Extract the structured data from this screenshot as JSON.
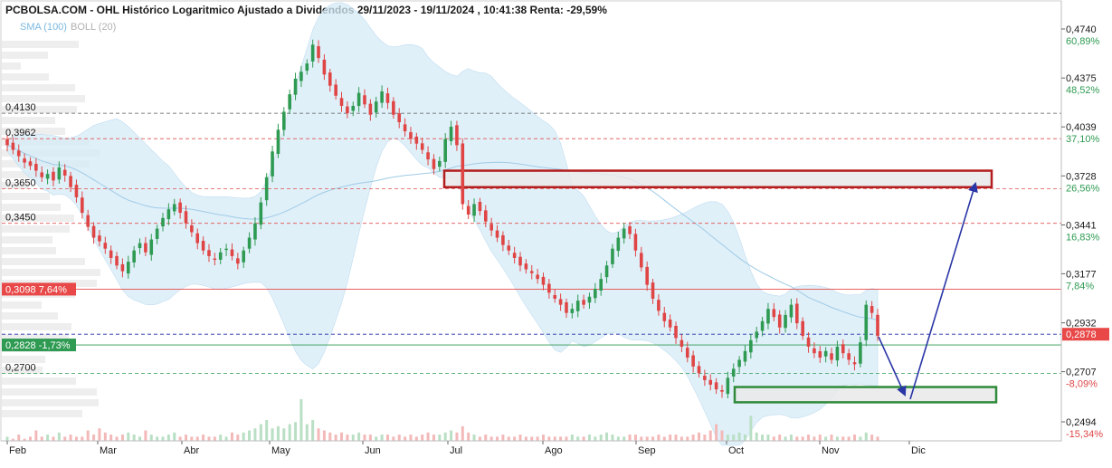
{
  "title": "PCBOLSA.COM - OHL Histórico Logaritmico Ajustado a Dividendos 29/11/2023 - 19/11/2024 , 10:41:38 Renta: -29,59%",
  "legend": {
    "sma": "SMA (100)",
    "boll": "BOLL (20)"
  },
  "chart_data": {
    "type": "candlestick",
    "scale": "log",
    "ylim": [
      0.2494,
      0.474
    ],
    "x_axis_months": [
      "Feb",
      "Mar",
      "Abr",
      "May",
      "Jun",
      "Jul",
      "Ago",
      "Sep",
      "Oct",
      "Nov",
      "Dic"
    ],
    "right_axis": [
      {
        "price": "0,4740",
        "pct": "60,89%",
        "sign": "pos",
        "value": 0.474
      },
      {
        "price": "0,4375",
        "pct": "48,52%",
        "sign": "pos",
        "value": 0.4375
      },
      {
        "price": "0,4039",
        "pct": "37,10%",
        "sign": "pos",
        "value": 0.4039
      },
      {
        "price": "0,3728",
        "pct": "26,56%",
        "sign": "pos",
        "value": 0.3728
      },
      {
        "price": "0,3441",
        "pct": "16,83%",
        "sign": "pos",
        "value": 0.3441
      },
      {
        "price": "0,3177",
        "pct": "7,84%",
        "sign": "pos",
        "value": 0.3177
      },
      {
        "price": "0,2932",
        "pct": "-0,44%",
        "sign": "neg",
        "value": 0.2932
      },
      {
        "price": "0,2707",
        "pct": "-8,09%",
        "sign": "neg",
        "value": 0.2707
      },
      {
        "price": "0,2494",
        "pct": "-15,34%",
        "sign": "neg",
        "value": 0.2494
      }
    ],
    "current_price_tag": {
      "text": "0,2878",
      "value": 0.2878,
      "color": "#e84848"
    },
    "level_lines": [
      {
        "label": "0,4130",
        "value": 0.413,
        "color": "#555555",
        "style": "dashed"
      },
      {
        "label": "0,3962",
        "value": 0.3962,
        "color": "#e05050",
        "style": "dashed"
      },
      {
        "label": "0,3650",
        "value": 0.365,
        "color": "#e05050",
        "style": "dashed"
      },
      {
        "label": "0,3450",
        "value": 0.345,
        "color": "#e05050",
        "style": "dashed"
      },
      {
        "label": "0,2700",
        "value": 0.27,
        "color": "#2e9a52",
        "style": "dashed"
      }
    ],
    "tagged_levels": [
      {
        "label": "0,3098  7,64%",
        "value": 0.3098,
        "color": "#e84848"
      },
      {
        "label": "0,2828  -1,73%",
        "value": 0.2828,
        "color": "#2e9a52"
      }
    ],
    "current_price_line": {
      "value": 0.2878,
      "color": "#1f2fa8"
    },
    "colors": {
      "up": "#2e9a52",
      "down": "#e04545",
      "band_fill": "#d6ebf7",
      "sma": "#9fcbe6",
      "resistance_box": "#b41d1d",
      "support_box": "#2f8a3a",
      "arrow": "#2a36a6"
    },
    "zones": [
      {
        "kind": "resistance",
        "from": "Jul",
        "to": "Dic+",
        "low": 0.366,
        "high": 0.376
      },
      {
        "kind": "support",
        "from": "Oct",
        "to": "Dic",
        "low": 0.2575,
        "high": 0.264
      }
    ],
    "price_path": [
      0.392,
      0.389,
      0.385,
      0.381,
      0.379,
      0.376,
      0.372,
      0.374,
      0.37,
      0.378,
      0.373,
      0.366,
      0.36,
      0.351,
      0.343,
      0.337,
      0.335,
      0.331,
      0.326,
      0.322,
      0.319,
      0.324,
      0.33,
      0.334,
      0.329,
      0.336,
      0.342,
      0.348,
      0.353,
      0.356,
      0.351,
      0.345,
      0.34,
      0.334,
      0.33,
      0.327,
      0.325,
      0.329,
      0.331,
      0.327,
      0.323,
      0.33,
      0.337,
      0.345,
      0.357,
      0.372,
      0.388,
      0.402,
      0.414,
      0.426,
      0.437,
      0.442,
      0.448,
      0.462,
      0.452,
      0.44,
      0.432,
      0.425,
      0.418,
      0.413,
      0.418,
      0.427,
      0.419,
      0.412,
      0.421,
      0.428,
      0.42,
      0.412,
      0.407,
      0.401,
      0.396,
      0.393,
      0.389,
      0.383,
      0.377,
      0.382,
      0.396,
      0.404,
      0.392,
      0.356,
      0.35,
      0.356,
      0.352,
      0.346,
      0.341,
      0.337,
      0.333,
      0.33,
      0.326,
      0.322,
      0.32,
      0.318,
      0.315,
      0.312,
      0.308,
      0.305,
      0.302,
      0.298,
      0.3,
      0.304,
      0.302,
      0.306,
      0.31,
      0.315,
      0.322,
      0.331,
      0.337,
      0.342,
      0.339,
      0.33,
      0.321,
      0.312,
      0.305,
      0.299,
      0.294,
      0.291,
      0.286,
      0.282,
      0.277,
      0.273,
      0.27,
      0.267,
      0.265,
      0.263,
      0.262,
      0.268,
      0.272,
      0.276,
      0.28,
      0.285,
      0.289,
      0.294,
      0.3,
      0.296,
      0.291,
      0.297,
      0.302,
      0.293,
      0.287,
      0.282,
      0.279,
      0.277,
      0.28,
      0.276,
      0.282,
      0.279,
      0.276,
      0.274,
      0.284,
      0.302,
      0.298,
      0.287
    ],
    "volume": [
      2,
      1,
      3,
      1,
      2,
      5,
      2,
      3,
      2,
      4,
      2,
      3,
      2,
      2,
      5,
      3,
      6,
      4,
      3,
      2,
      3,
      4,
      3,
      2,
      5,
      3,
      2,
      2,
      3,
      4,
      2,
      3,
      2,
      2,
      3,
      2,
      2,
      3,
      2,
      4,
      3,
      4,
      5,
      6,
      8,
      10,
      6,
      7,
      6,
      8,
      9,
      20,
      8,
      10,
      6,
      5,
      4,
      3,
      4,
      3,
      3,
      4,
      3,
      3,
      2,
      3,
      3,
      2,
      3,
      2,
      3,
      2,
      3,
      4,
      3,
      3,
      4,
      5,
      4,
      7,
      4,
      3,
      2,
      3,
      2,
      2,
      3,
      2,
      2,
      3,
      2,
      2,
      2,
      3,
      2,
      2,
      2,
      2,
      3,
      2,
      2,
      3,
      2,
      3,
      4,
      3,
      2,
      2,
      3,
      3,
      2,
      2,
      2,
      3,
      2,
      3,
      3,
      2,
      2,
      3,
      4,
      3,
      5,
      8,
      5,
      3,
      3,
      4,
      3,
      12,
      4,
      3,
      3,
      2,
      3,
      2,
      3,
      2,
      2,
      3,
      2,
      3,
      2,
      3,
      2,
      2,
      2,
      3,
      2,
      4,
      3,
      2
    ]
  }
}
